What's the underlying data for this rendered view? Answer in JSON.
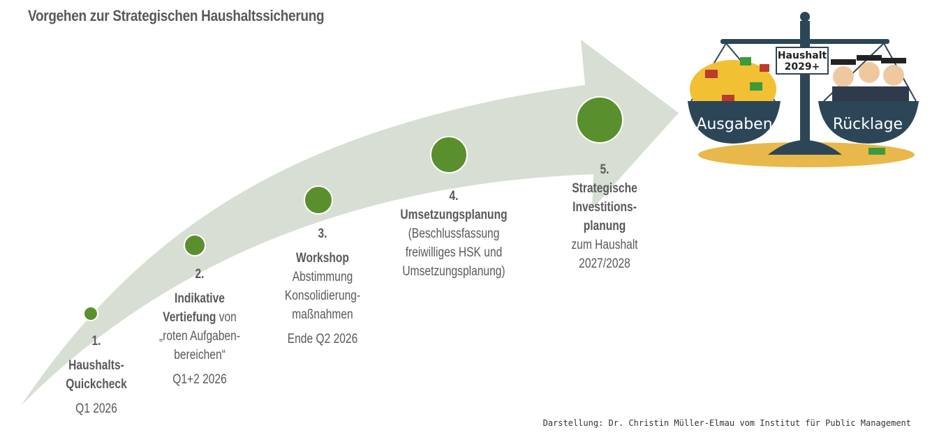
{
  "title": "Vorgehen zur Strategischen Haushaltssicherung",
  "steps": [
    {
      "num": "1.",
      "bold": "Haushalts-\nQuickcheck",
      "text": "",
      "date": "Q1 2026"
    },
    {
      "num": "2.",
      "bold": "Indikative Vertiefung",
      "text": "von „roten Aufgaben-bereichen“",
      "date": "Q1+2 2026"
    },
    {
      "num": "3.",
      "bold": "Workshop",
      "text": "Abstimmung Konsolidierung-maßnahmen",
      "date": "Ende Q2 2026"
    },
    {
      "num": "4.",
      "bold": "Umsetzungsplanung",
      "text": "(Beschlussfassung freiwilliges HSK und Umsetzungsplanung)",
      "date": ""
    },
    {
      "num": "5.",
      "bold": "Strategische Investitions-planung",
      "text": "zum Haushalt 2027/2028",
      "date": ""
    }
  ],
  "scale": {
    "sign": "Haushalt\n2029+",
    "left_pan": "Ausgaben",
    "right_pan": "Rücklage"
  },
  "credit": "Darstellung: Dr. Christin Müller-Elmau vom Institut für Public Management",
  "colors": {
    "arrow": "#d7ded3",
    "circle": "#5a8f2e",
    "text": "#595959"
  }
}
